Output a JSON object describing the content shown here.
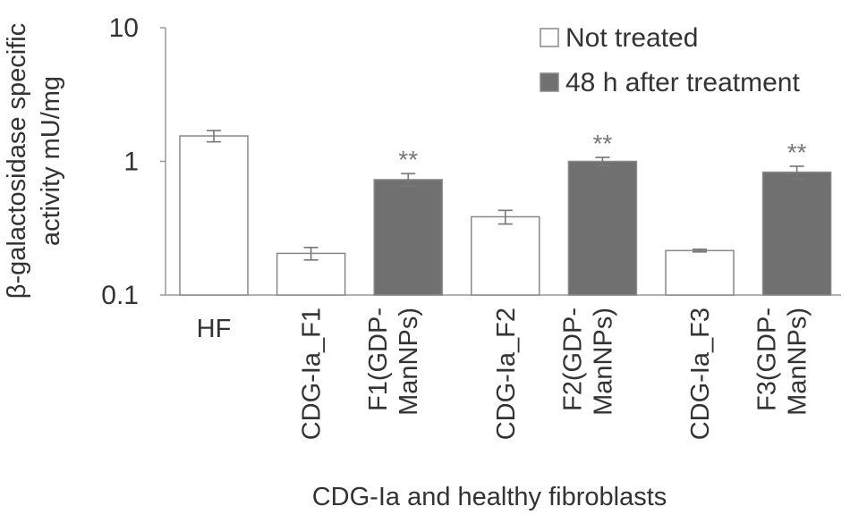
{
  "chart_data": {
    "type": "bar",
    "xlabel": "CDG-Ia and healthy fibroblasts",
    "ylabel_lines": [
      "β-galactosidase specific",
      "activity mU/mg"
    ],
    "y_scale": "log",
    "ylim": [
      0.1,
      10
    ],
    "y_ticks": [
      {
        "value": 0.1,
        "label": "0.1"
      },
      {
        "value": 1,
        "label": "1"
      },
      {
        "value": 10,
        "label": "10"
      }
    ],
    "grid": false,
    "legend_position": "top-right",
    "series": [
      {
        "name": "Not treated",
        "color": "#ffffff"
      },
      {
        "name": "48 h after treatment",
        "color": "#707070"
      }
    ],
    "bars": [
      {
        "label_lines": [
          "HF"
        ],
        "rotated": false,
        "series": 0,
        "value": 1.55,
        "err": 0.15,
        "sig": ""
      },
      {
        "label_lines": [
          "CDG-Ia_F1"
        ],
        "rotated": true,
        "series": 0,
        "value": 0.205,
        "err": 0.022,
        "sig": ""
      },
      {
        "label_lines": [
          "F1(GDP-",
          "ManNPs)"
        ],
        "rotated": true,
        "series": 1,
        "value": 0.73,
        "err": 0.08,
        "sig": "**"
      },
      {
        "label_lines": [
          "CDG-Ia_F2"
        ],
        "rotated": true,
        "series": 0,
        "value": 0.385,
        "err": 0.045,
        "sig": ""
      },
      {
        "label_lines": [
          "F2(GDP-",
          "ManNPs)"
        ],
        "rotated": true,
        "series": 1,
        "value": 1.0,
        "err": 0.07,
        "sig": "**"
      },
      {
        "label_lines": [
          "CDG-Ia_F3"
        ],
        "rotated": true,
        "series": 0,
        "value": 0.215,
        "err": 0.005,
        "sig": ""
      },
      {
        "label_lines": [
          "F3(GDP-",
          "ManNPs)"
        ],
        "rotated": true,
        "series": 1,
        "value": 0.83,
        "err": 0.09,
        "sig": "**"
      }
    ],
    "colors": {
      "bar_outline": "#888888",
      "axis": "#9a9a9a",
      "error_bar": "#777777"
    }
  }
}
